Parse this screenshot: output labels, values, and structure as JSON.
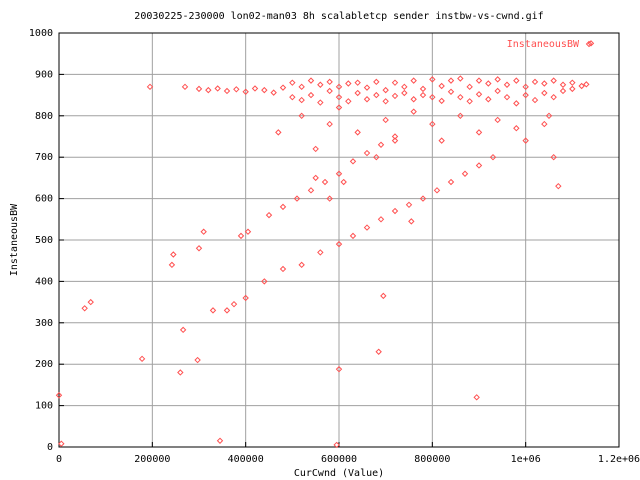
{
  "chart_data": {
    "type": "scatter",
    "title": "20030225-230000 lon02-man03 8h scalabletcp sender instbw-vs-cwnd.gif",
    "xlabel": "CurCwnd (Value)",
    "ylabel": "InstaneousBW",
    "xlim": [
      0,
      1200000
    ],
    "ylim": [
      0,
      1000
    ],
    "xticks": [
      0,
      200000,
      400000,
      600000,
      800000,
      {
        "value": 1000000,
        "label": "1e+06"
      },
      {
        "value": 1200000,
        "label": "1.2e+06"
      }
    ],
    "yticks": [
      0,
      100,
      200,
      300,
      400,
      500,
      600,
      700,
      800,
      900,
      1000
    ],
    "grid": true,
    "legend": "top-right",
    "series": [
      {
        "name": "InstaneousBW",
        "color": "#ff5050",
        "x": [
          300000,
          320000,
          340000,
          360000,
          380000,
          400000,
          420000,
          440000,
          460000,
          480000,
          500000,
          500000,
          520000,
          520000,
          540000,
          540000,
          560000,
          560000,
          580000,
          580000,
          600000,
          600000,
          620000,
          620000,
          640000,
          640000,
          660000,
          660000,
          680000,
          680000,
          700000,
          700000,
          720000,
          720000,
          740000,
          740000,
          760000,
          760000,
          780000,
          780000,
          800000,
          800000,
          820000,
          820000,
          840000,
          840000,
          860000,
          860000,
          880000,
          880000,
          900000,
          900000,
          920000,
          920000,
          940000,
          940000,
          960000,
          960000,
          980000,
          980000,
          1000000,
          1000000,
          1020000,
          1020000,
          1040000,
          1040000,
          1060000,
          1060000,
          1080000,
          1080000,
          1100000,
          1100000,
          1120000,
          1130000,
          470000,
          520000,
          550000,
          580000,
          600000,
          640000,
          680000,
          700000,
          720000,
          760000,
          800000,
          820000,
          860000,
          900000,
          940000,
          980000,
          1000000,
          1040000,
          1060000,
          1070000,
          1050000,
          450000,
          480000,
          510000,
          540000,
          570000,
          600000,
          630000,
          660000,
          690000,
          720000,
          600000,
          630000,
          660000,
          690000,
          720000,
          750000,
          780000,
          810000,
          840000,
          870000,
          900000,
          930000,
          360000,
          400000,
          440000,
          480000,
          520000,
          560000,
          550000,
          580000,
          610000,
          0,
          5000,
          55000,
          68000,
          178000,
          195000,
          242000,
          245000,
          260000,
          266000,
          270000,
          297000,
          300000,
          310000,
          330000,
          345000,
          375000,
          390000,
          405000,
          600000,
          595000,
          685000,
          695000,
          895000,
          755000,
          1140000
        ],
        "y": [
          865,
          862,
          866,
          860,
          864,
          858,
          866,
          862,
          856,
          868,
          880,
          845,
          870,
          838,
          885,
          850,
          875,
          832,
          860,
          882,
          845,
          870,
          878,
          835,
          855,
          880,
          868,
          840,
          882,
          850,
          862,
          835,
          880,
          848,
          870,
          855,
          885,
          840,
          865,
          850,
          888,
          845,
          872,
          836,
          885,
          858,
          890,
          845,
          870,
          835,
          885,
          852,
          878,
          840,
          888,
          860,
          875,
          845,
          885,
          830,
          870,
          850,
          882,
          838,
          878,
          855,
          885,
          845,
          875,
          860,
          880,
          865,
          872,
          876,
          760,
          800,
          720,
          780,
          820,
          760,
          700,
          790,
          740,
          810,
          780,
          740,
          800,
          760,
          790,
          770,
          740,
          780,
          700,
          630,
          800,
          560,
          580,
          600,
          620,
          640,
          660,
          690,
          710,
          730,
          750,
          490,
          510,
          530,
          550,
          570,
          585,
          600,
          620,
          640,
          660,
          680,
          700,
          330,
          360,
          400,
          430,
          440,
          470,
          650,
          600,
          640,
          125,
          8,
          335,
          350,
          213,
          870,
          440,
          465,
          180,
          283,
          870,
          210,
          480,
          520,
          330,
          15,
          345,
          510,
          520,
          188,
          5,
          230,
          365,
          120,
          545,
          975
        ]
      }
    ]
  }
}
